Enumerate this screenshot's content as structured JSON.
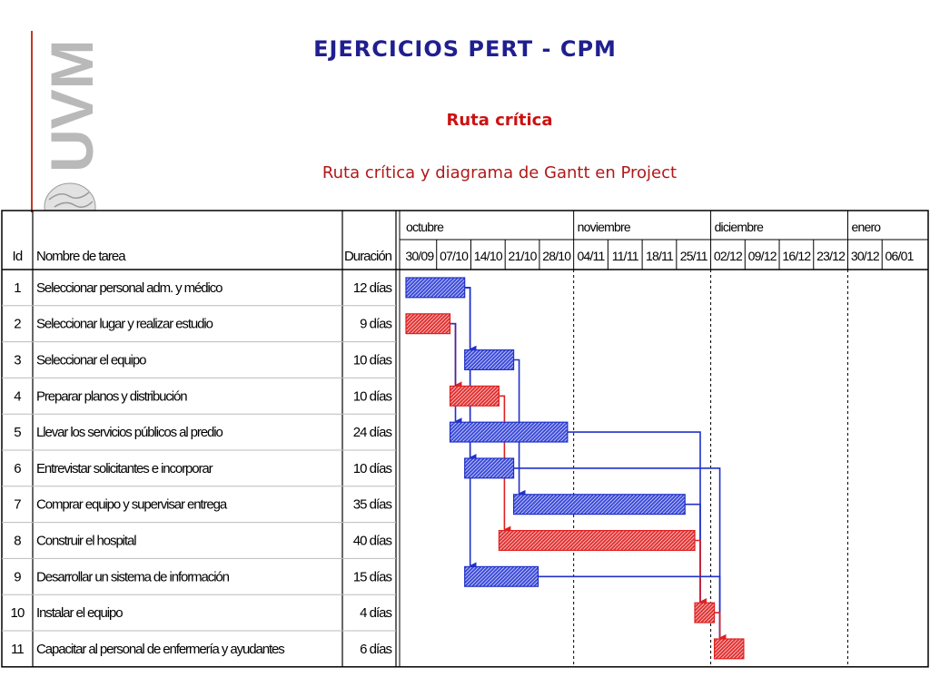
{
  "header": {
    "title": "EJERCICIOS PERT - CPM",
    "subtitle": "Ruta crítica",
    "caption": "Ruta crítica y diagrama de Gantt en Project",
    "logo_text": "UVM"
  },
  "table": {
    "col_id": "Id",
    "col_name": "Nombre de tarea",
    "col_duration": "Duración"
  },
  "timeline": {
    "months": [
      "octubre",
      "noviembre",
      "diciembre",
      "enero"
    ],
    "weeks": [
      "30/09",
      "07/10",
      "14/10",
      "21/10",
      "28/10",
      "04/11",
      "11/11",
      "18/11",
      "25/11",
      "02/12",
      "09/12",
      "16/12",
      "23/12",
      "30/12",
      "06/01"
    ]
  },
  "colors": {
    "critical": "#e02020",
    "normal": "#2030c8"
  },
  "tasks": [
    {
      "id": "1",
      "name": "Seleccionar personal adm. y médico",
      "duration": "12 días",
      "start_day": 0,
      "length_days": 12,
      "critical": false
    },
    {
      "id": "2",
      "name": "Seleccionar lugar y realizar estudio",
      "duration": "9 días",
      "start_day": 0,
      "length_days": 9,
      "critical": true
    },
    {
      "id": "3",
      "name": "Seleccionar el equipo",
      "duration": "10 días",
      "start_day": 12,
      "length_days": 10,
      "critical": false
    },
    {
      "id": "4",
      "name": "Preparar planos y distribución",
      "duration": "10 días",
      "start_day": 9,
      "length_days": 10,
      "critical": true
    },
    {
      "id": "5",
      "name": "Llevar los servicios públicos al predio",
      "duration": "24 días",
      "start_day": 9,
      "length_days": 24,
      "critical": false
    },
    {
      "id": "6",
      "name": "Entrevistar solicitantes e incorporar",
      "duration": "10 días",
      "start_day": 12,
      "length_days": 10,
      "critical": false
    },
    {
      "id": "7",
      "name": "Comprar equipo y supervisar entrega",
      "duration": "35 días",
      "start_day": 22,
      "length_days": 35,
      "critical": false
    },
    {
      "id": "8",
      "name": "Construir el hospital",
      "duration": "40 días",
      "start_day": 19,
      "length_days": 40,
      "critical": true
    },
    {
      "id": "9",
      "name": "Desarrollar un sistema de información",
      "duration": "15 días",
      "start_day": 12,
      "length_days": 15,
      "critical": false
    },
    {
      "id": "10",
      "name": "Instalar el equipo",
      "duration": "4 días",
      "start_day": 59,
      "length_days": 4,
      "critical": true
    },
    {
      "id": "11",
      "name": "Capacitar al personal de enfermería y ayudantes",
      "duration": "6 días",
      "start_day": 63,
      "length_days": 6,
      "critical": true
    }
  ],
  "links": [
    {
      "from": "1",
      "to": "3",
      "critical": false
    },
    {
      "from": "1",
      "to": "6",
      "critical": false
    },
    {
      "from": "1",
      "to": "9",
      "critical": false
    },
    {
      "from": "2",
      "to": "4",
      "critical": true
    },
    {
      "from": "2",
      "to": "5",
      "critical": false
    },
    {
      "from": "3",
      "to": "7",
      "critical": false
    },
    {
      "from": "4",
      "to": "8",
      "critical": true
    },
    {
      "from": "5",
      "to": "10",
      "critical": false
    },
    {
      "from": "7",
      "to": "10",
      "critical": false
    },
    {
      "from": "8",
      "to": "10",
      "critical": true
    },
    {
      "from": "6",
      "to": "11",
      "critical": false
    },
    {
      "from": "9",
      "to": "11",
      "critical": false
    },
    {
      "from": "10",
      "to": "11",
      "critical": true
    }
  ]
}
